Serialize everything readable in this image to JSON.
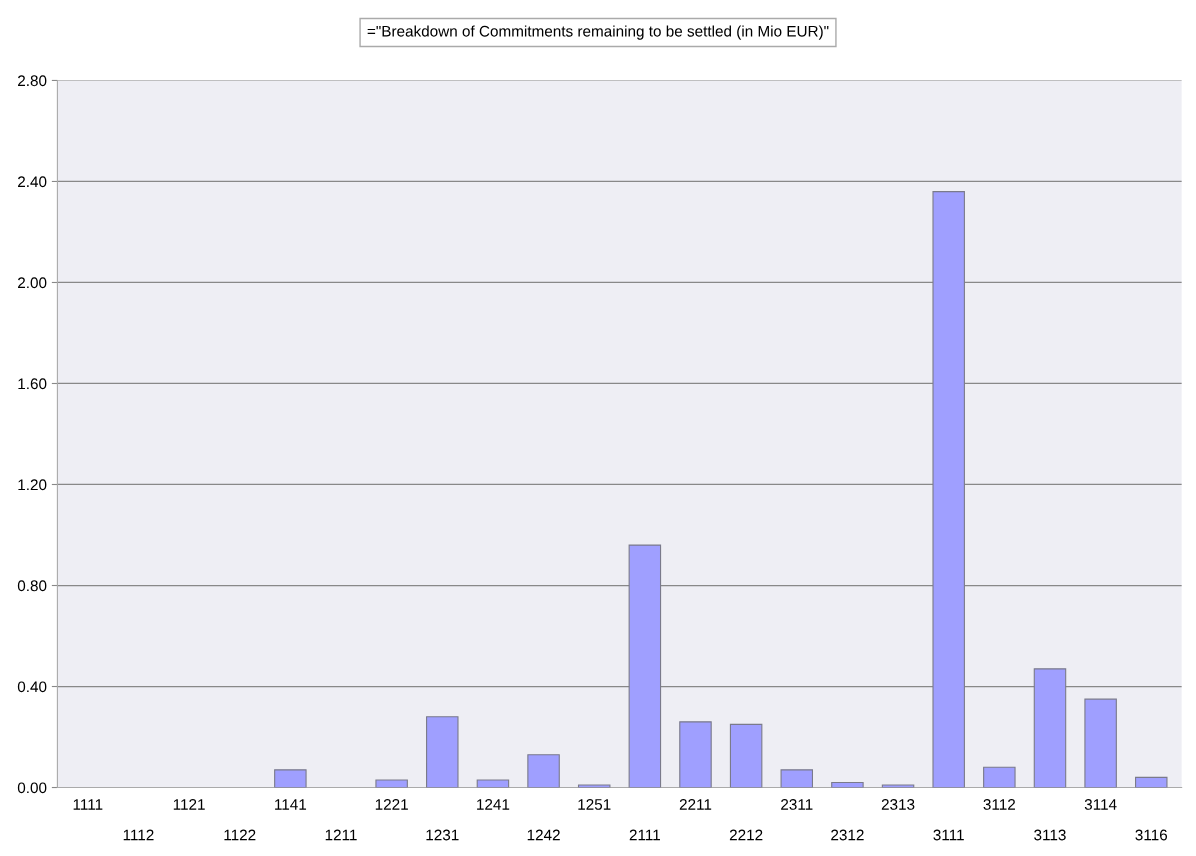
{
  "chart_data": {
    "type": "bar",
    "title": "=\"Breakdown of Commitments remaining to be settled (in Mio EUR)\"",
    "categories": [
      "1111",
      "1112",
      "1121",
      "1122",
      "1141",
      "1211",
      "1221",
      "1231",
      "1241",
      "1242",
      "1251",
      "2111",
      "2211",
      "2212",
      "2311",
      "2312",
      "2313",
      "3111",
      "3112",
      "3113",
      "3114",
      "3116"
    ],
    "values": [
      0,
      0,
      0,
      0,
      0.07,
      0,
      0.03,
      0.28,
      0.03,
      0.13,
      0.01,
      0.96,
      0.26,
      0.25,
      0.07,
      0.02,
      0.01,
      2.36,
      0.08,
      0.47,
      0.35,
      0.04
    ],
    "color": "#9f9fff",
    "ylim": [
      0,
      2.8
    ],
    "yticks": [
      {
        "value": 0,
        "label": "0.00"
      },
      {
        "value": 0.4,
        "label": "0.40"
      },
      {
        "value": 0.8,
        "label": "0.80"
      },
      {
        "value": 1.2,
        "label": "1.20"
      },
      {
        "value": 1.6,
        "label": "1.60"
      },
      {
        "value": 2.0,
        "label": "2.00"
      },
      {
        "value": 2.4,
        "label": "2.40"
      },
      {
        "value": 2.8,
        "label": "2.80"
      }
    ],
    "grid": "y"
  }
}
